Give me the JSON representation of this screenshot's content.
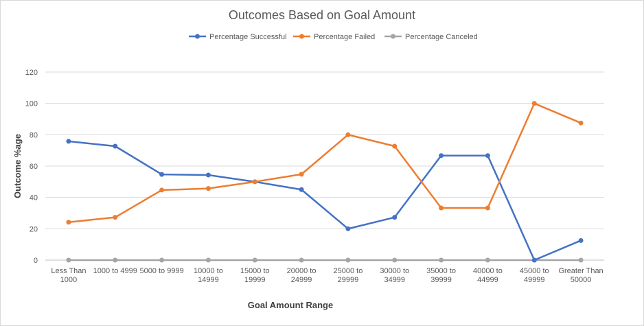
{
  "chart_data": {
    "type": "line",
    "title": "Outcomes Based on Goal Amount",
    "xlabel": "Goal Amount Range",
    "ylabel": "Outcome %age",
    "ylim": [
      0,
      120
    ],
    "yticks": [
      0,
      20,
      40,
      60,
      80,
      100,
      120
    ],
    "grid": true,
    "legend_position": "top",
    "categories": [
      "Less Than 1000",
      "1000 to 4999",
      "5000 to 9999",
      "10000 to 14999",
      "15000 to 19999",
      "20000 to 24999",
      "25000 to 29999",
      "30000 to 34999",
      "35000 to 39999",
      "40000 to 44999",
      "45000 to 49999",
      "Greater Than 50000"
    ],
    "category_label_lines": [
      [
        "Less Than",
        "1000"
      ],
      [
        "1000 to 4999"
      ],
      [
        "5000 to 9999"
      ],
      [
        "10000 to",
        "14999"
      ],
      [
        "15000 to",
        "19999"
      ],
      [
        "20000 to",
        "24999"
      ],
      [
        "25000 to",
        "29999"
      ],
      [
        "30000 to",
        "34999"
      ],
      [
        "35000 to",
        "39999"
      ],
      [
        "40000 to",
        "44999"
      ],
      [
        "45000 to",
        "49999"
      ],
      [
        "Greater Than",
        "50000"
      ]
    ],
    "series": [
      {
        "name": "Percentage Successful",
        "color": "#4472c4",
        "values": [
          75.8,
          72.7,
          54.7,
          54.3,
          50.0,
          45.0,
          20.0,
          27.3,
          66.7,
          66.7,
          0,
          12.5
        ]
      },
      {
        "name": "Percentage Failed",
        "color": "#ed7d31",
        "values": [
          24.2,
          27.3,
          44.7,
          45.7,
          50.0,
          54.8,
          80.0,
          72.7,
          33.3,
          33.3,
          100.0,
          87.5
        ]
      },
      {
        "name": "Percentage Canceled",
        "color": "#a5a5a5",
        "values": [
          0,
          0,
          0,
          0,
          0,
          0,
          0,
          0,
          0,
          0,
          0,
          0
        ]
      }
    ]
  }
}
